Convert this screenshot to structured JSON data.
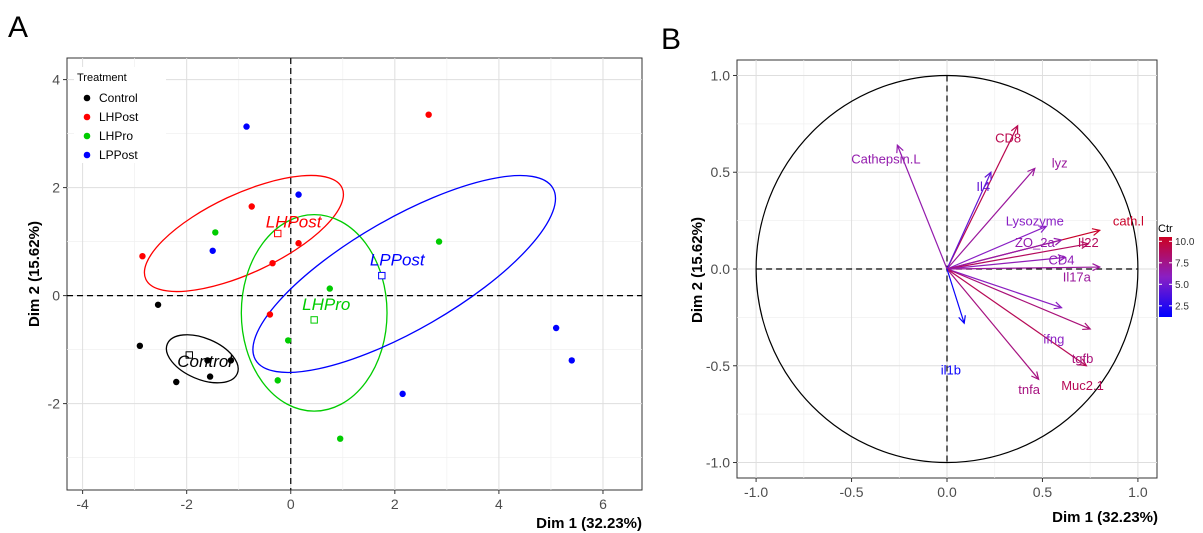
{
  "chart_data": [
    {
      "panel_label": "A",
      "type": "scatter",
      "xlabel": "Dim 1 (32.23%)",
      "ylabel": "Dim 2 (15.62%)",
      "xlim": [
        -4.3,
        6.75
      ],
      "ylim": [
        -3.6,
        4.4
      ],
      "x_ticks": [
        -4,
        -2,
        0,
        2,
        4,
        6
      ],
      "y_ticks": [
        -2,
        0,
        2,
        4
      ],
      "legend": {
        "title": "Treatment",
        "position": "top-left"
      },
      "grid": true,
      "series": [
        {
          "name": "Control",
          "color": "#000000",
          "points": [
            [
              -2.55,
              -0.17
            ],
            [
              -2.9,
              -0.93
            ],
            [
              -2.2,
              -1.6
            ],
            [
              -1.6,
              -1.2
            ],
            [
              -1.55,
              -1.5
            ],
            [
              -1.15,
              -1.2
            ]
          ],
          "centroid": [
            -1.95,
            -1.1
          ],
          "ellipse": {
            "cx": -1.7,
            "cy": -1.17,
            "rx": 0.73,
            "ry": 0.38,
            "angle_deg": -23
          },
          "label": "Control"
        },
        {
          "name": "LHPost",
          "color": "#ff0000",
          "points": [
            [
              -2.85,
              0.73
            ],
            [
              -0.75,
              1.65
            ],
            [
              -0.35,
              0.6
            ],
            [
              -0.4,
              -0.35
            ],
            [
              0.15,
              0.97
            ],
            [
              2.65,
              3.35
            ]
          ],
          "centroid": [
            -0.25,
            1.15
          ],
          "ellipse": {
            "cx": -0.9,
            "cy": 1.15,
            "rx": 2.08,
            "ry": 0.73,
            "angle_deg": 25
          },
          "label": "LHPost"
        },
        {
          "name": "LHPro",
          "color": "#00cc00",
          "points": [
            [
              -1.45,
              1.17
            ],
            [
              -0.25,
              -1.57
            ],
            [
              -0.05,
              -0.83
            ],
            [
              0.75,
              0.13
            ],
            [
              0.95,
              -2.65
            ],
            [
              2.85,
              1.0
            ]
          ],
          "centroid": [
            0.45,
            -0.45
          ],
          "ellipse": {
            "cx": 0.45,
            "cy": -0.32,
            "rx": 1.4,
            "ry": 1.82,
            "angle_deg": 0
          },
          "label": "LHPro"
        },
        {
          "name": "LPPost",
          "color": "#0000ff",
          "points": [
            [
              -0.85,
              3.13
            ],
            [
              -1.5,
              0.83
            ],
            [
              0.15,
              1.87
            ],
            [
              2.15,
              -1.82
            ],
            [
              5.1,
              -0.6
            ],
            [
              5.4,
              -1.2
            ]
          ],
          "centroid": [
            1.75,
            0.37
          ],
          "ellipse": {
            "cx": 2.18,
            "cy": 0.4,
            "rx": 3.3,
            "ry": 1.03,
            "angle_deg": 30
          },
          "label": "LPPost"
        }
      ]
    },
    {
      "panel_label": "B",
      "type": "variable_correlation_circle",
      "xlabel": "Dim 1 (32.23%)",
      "ylabel": "Dim 2 (15.62%)",
      "xlim": [
        -1.1,
        1.1
      ],
      "ylim": [
        -1.08,
        1.08
      ],
      "x_ticks": [
        "-1.0",
        "-0.5",
        "0.0",
        "0.5",
        "1.0"
      ],
      "y_ticks": [
        "-1.0",
        "-0.5",
        "0.0",
        "0.5",
        "1.0"
      ],
      "grid": true,
      "colorbar": {
        "title": "Ctr",
        "ticks": [
          "2.5",
          "5.0",
          "7.5",
          "10.0"
        ],
        "range": [
          1.2,
          10.5
        ],
        "low_color": "#0000ff",
        "high_color": "#cc0022"
      },
      "variables": [
        {
          "name": "CD8",
          "x": 0.37,
          "y": 0.74,
          "ctr": 9.2,
          "label_pos": [
            0.32,
            0.68
          ]
        },
        {
          "name": "Cathepsin.L",
          "x": -0.26,
          "y": 0.64,
          "ctr": 6.5,
          "label_pos": [
            -0.32,
            0.57
          ]
        },
        {
          "name": "lyz",
          "x": 0.46,
          "y": 0.52,
          "ctr": 7.0,
          "label_pos": [
            0.59,
            0.55
          ]
        },
        {
          "name": "Il4",
          "x": 0.23,
          "y": 0.5,
          "ctr": 4.5,
          "label_pos": [
            0.19,
            0.43
          ]
        },
        {
          "name": "Lysozyme",
          "x": 0.52,
          "y": 0.22,
          "ctr": 5.8,
          "label_pos": [
            0.46,
            0.25
          ]
        },
        {
          "name": "cath.l",
          "x": 0.8,
          "y": 0.2,
          "ctr": 10.3,
          "label_pos": [
            0.95,
            0.25
          ]
        },
        {
          "name": "ZO_2a",
          "x": 0.6,
          "y": 0.15,
          "ctr": 6.5,
          "label_pos": [
            0.46,
            0.14
          ]
        },
        {
          "name": "Il22",
          "x": 0.74,
          "y": 0.13,
          "ctr": 8.8,
          "label_pos": [
            0.74,
            0.14
          ]
        },
        {
          "name": "CD4",
          "x": 0.62,
          "y": 0.06,
          "ctr": 6.2,
          "label_pos": [
            0.6,
            0.05
          ]
        },
        {
          "name": "Il17a",
          "x": 0.8,
          "y": 0.01,
          "ctr": 7.0,
          "label_pos": [
            0.68,
            -0.04
          ]
        },
        {
          "name": "ifng",
          "x": 0.6,
          "y": -0.2,
          "ctr": 5.9,
          "label_pos": [
            0.56,
            -0.36
          ]
        },
        {
          "name": "tgfb",
          "x": 0.75,
          "y": -0.31,
          "ctr": 8.0,
          "label_pos": [
            0.71,
            -0.46
          ]
        },
        {
          "name": "Muc2.1",
          "x": 0.73,
          "y": -0.5,
          "ctr": 9.0,
          "label_pos": [
            0.71,
            -0.6
          ]
        },
        {
          "name": "tnfa",
          "x": 0.48,
          "y": -0.57,
          "ctr": 7.8,
          "label_pos": [
            0.43,
            -0.62
          ]
        },
        {
          "name": "il1b",
          "x": 0.09,
          "y": -0.28,
          "ctr": 1.5,
          "label_pos": [
            0.02,
            -0.52
          ]
        }
      ]
    }
  ]
}
